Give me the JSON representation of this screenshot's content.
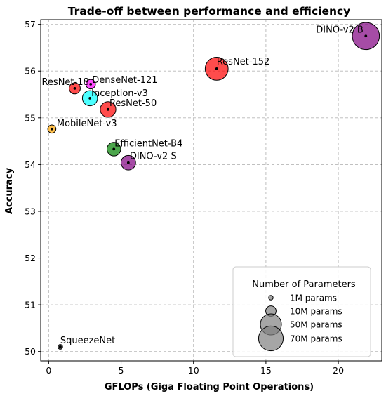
{
  "chart_data": {
    "type": "scatter",
    "title": "Trade-off between performance and efficiency",
    "xlabel": "GFLOPs (Giga Floating Point Operations)",
    "ylabel": "Accuracy",
    "xlim": [
      -0.55,
      23.0
    ],
    "ylim": [
      49.8,
      57.1
    ],
    "xticks": [
      0,
      5,
      10,
      15,
      20
    ],
    "yticks": [
      50,
      51,
      52,
      53,
      54,
      55,
      56,
      57
    ],
    "grid": true,
    "points": [
      {
        "name": "DINO-v2 B",
        "x": 21.9,
        "y": 56.75,
        "params": 86,
        "color": "#800080"
      },
      {
        "name": "ResNet-152",
        "x": 11.6,
        "y": 56.05,
        "params": 60,
        "color": "#ff0000"
      },
      {
        "name": "ResNet-18",
        "x": 1.8,
        "y": 55.63,
        "params": 11.7,
        "color": "#ff0000"
      },
      {
        "name": "DenseNet-121",
        "x": 2.9,
        "y": 55.72,
        "params": 8,
        "color": "#ff00ff"
      },
      {
        "name": "Inception-v3",
        "x": 2.85,
        "y": 55.42,
        "params": 23.8,
        "color": "#00ffff"
      },
      {
        "name": "ResNet-50",
        "x": 4.1,
        "y": 55.18,
        "params": 25.6,
        "color": "#ff0000"
      },
      {
        "name": "MobileNet-v3",
        "x": 0.22,
        "y": 54.76,
        "params": 5.4,
        "color": "#ffa500"
      },
      {
        "name": "EfficientNet-B4",
        "x": 4.5,
        "y": 54.33,
        "params": 19,
        "color": "#008000"
      },
      {
        "name": "DINO-v2 S",
        "x": 5.5,
        "y": 54.04,
        "params": 22,
        "color": "#800080"
      },
      {
        "name": "SqueezeNet",
        "x": 0.8,
        "y": 50.1,
        "params": 1.2,
        "color": "#000000"
      }
    ],
    "legend": {
      "title": "Number of Parameters",
      "placement": "bottom-right",
      "entries": [
        {
          "label": "1M params",
          "params": 1
        },
        {
          "label": "10M params",
          "params": 10
        },
        {
          "label": "50M params",
          "params": 50
        },
        {
          "label": "70M params",
          "params": 70
        }
      ]
    }
  }
}
